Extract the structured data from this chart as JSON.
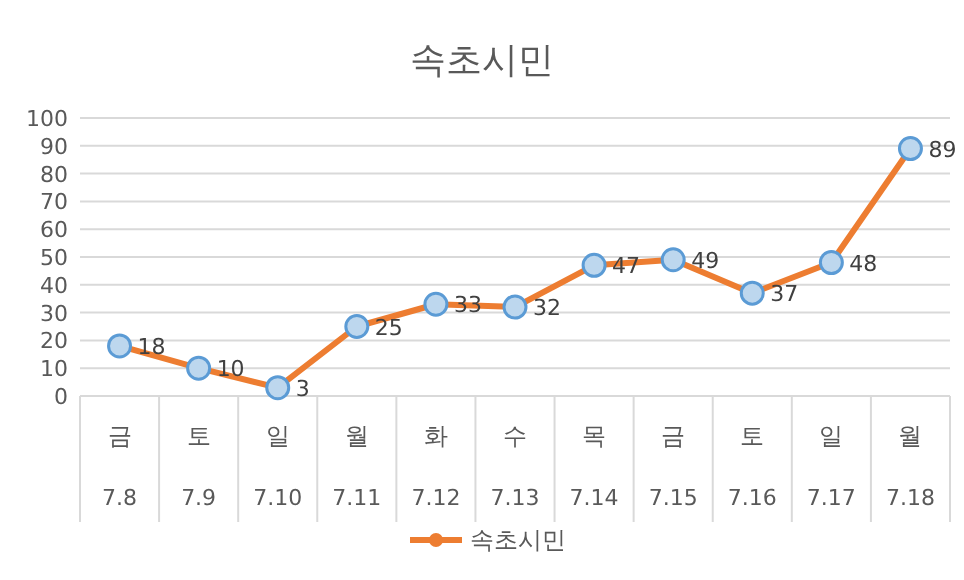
{
  "chart_data": {
    "type": "line",
    "title": "속초시민",
    "categories": [
      "금\n7.8",
      "토\n7.9",
      "일\n7.10",
      "월\n7.11",
      "화\n7.12",
      "수\n7.13",
      "목\n7.14",
      "금\n7.15",
      "토\n7.16",
      "일\n7.17",
      "월\n7.18"
    ],
    "series": [
      {
        "name": "속초시민",
        "color": "#ed7d31",
        "values": [
          18,
          10,
          3,
          25,
          33,
          32,
          47,
          49,
          37,
          48,
          89
        ]
      }
    ],
    "ylim": [
      0,
      100
    ],
    "yticks": [
      0,
      10,
      20,
      30,
      40,
      50,
      60,
      70,
      80,
      90,
      100
    ],
    "grid": "y",
    "legend": "bottom",
    "marker": "circle",
    "data_labels": true
  }
}
